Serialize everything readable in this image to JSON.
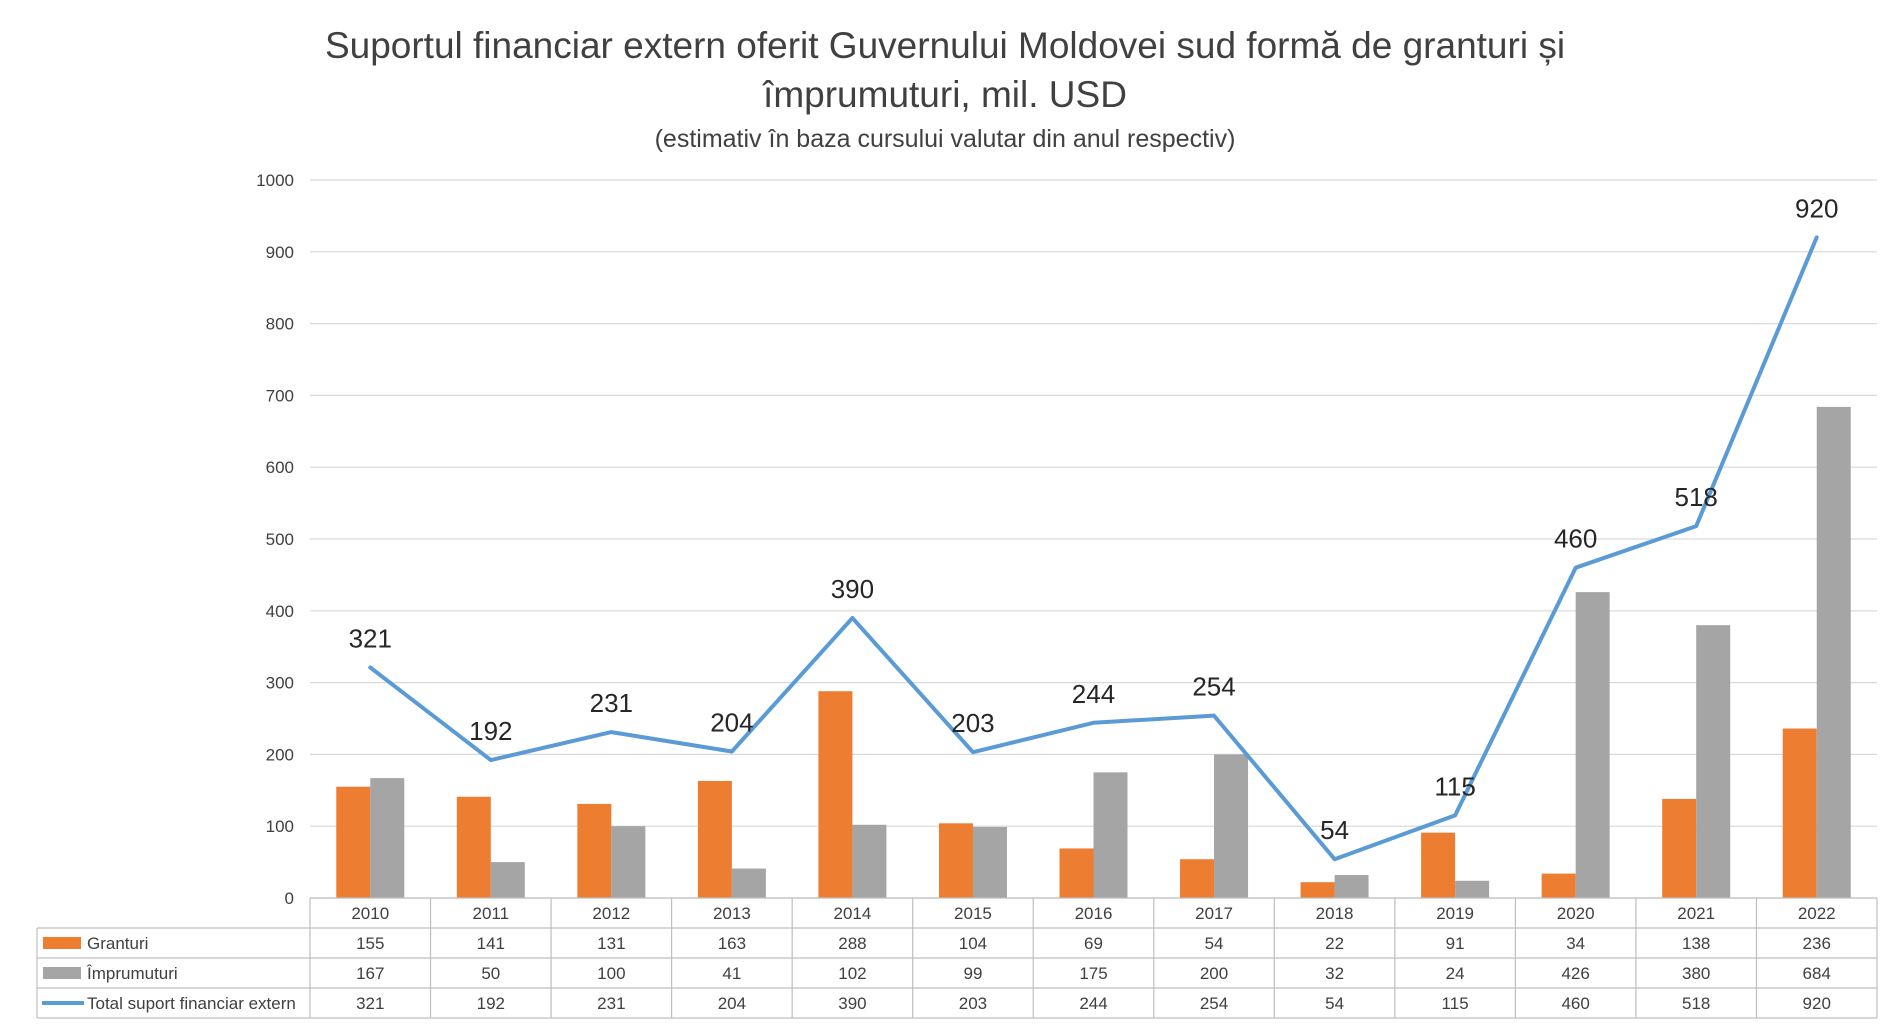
{
  "chart_data": {
    "type": "bar",
    "title_line1": "Suportul financiar extern oferit Guvernului Moldovei sud formă de granturi și",
    "title_line2": "împrumuturi, mil. USD",
    "subtitle": "(estimativ în baza cursului valutar din anul respectiv)",
    "categories": [
      "2010",
      "2011",
      "2012",
      "2013",
      "2014",
      "2015",
      "2016",
      "2017",
      "2018",
      "2019",
      "2020",
      "2021",
      "2022"
    ],
    "series": [
      {
        "name": "Granturi",
        "kind": "bar",
        "color": "#ed7d31",
        "values": [
          155,
          141,
          131,
          163,
          288,
          104,
          69,
          54,
          22,
          91,
          34,
          138,
          236
        ]
      },
      {
        "name": "Împrumuturi",
        "kind": "bar",
        "color": "#a5a5a5",
        "values": [
          167,
          50,
          100,
          41,
          102,
          99,
          175,
          200,
          32,
          24,
          426,
          380,
          684
        ]
      },
      {
        "name": "Total suport financiar extern",
        "kind": "line",
        "color": "#5b9bd5",
        "values": [
          321,
          192,
          231,
          204,
          390,
          203,
          244,
          254,
          54,
          115,
          460,
          518,
          920
        ]
      }
    ],
    "yticks": [
      0,
      100,
      200,
      300,
      400,
      500,
      600,
      700,
      800,
      900,
      1000
    ],
    "ylim": [
      0,
      1000
    ],
    "grid": true,
    "legend": "data-table"
  }
}
